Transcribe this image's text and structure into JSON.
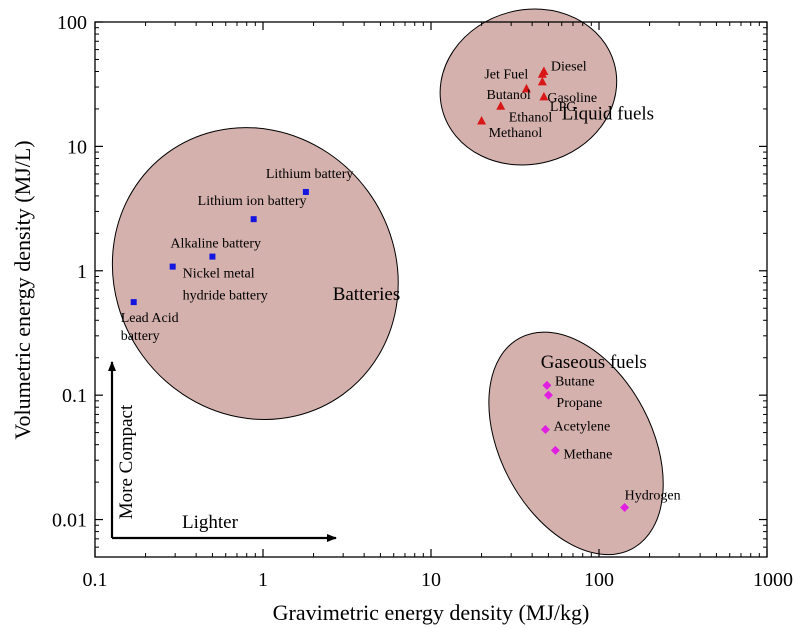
{
  "chart_data": {
    "type": "scatter",
    "title": "",
    "xlabel": "Gravimetric energy density (MJ/kg)",
    "ylabel": "Volumetric energy density (MJ/L)",
    "xscale": "log",
    "yscale": "log",
    "xlim": [
      0.1,
      1000
    ],
    "ylim": [
      0.005,
      100
    ],
    "grid": false,
    "xticks": [
      "0.1",
      "1",
      "10",
      "100",
      "1000"
    ],
    "yticks": [
      "0.01",
      "0.1",
      "1",
      "10",
      "100"
    ],
    "series": [
      {
        "group": "Batteries",
        "marker": "square",
        "color": "#1515e0",
        "ellipse": {
          "cx": 0.9,
          "cy": 0.95,
          "rx_decades": 0.83,
          "ry_decades": 1.2,
          "angle_deg": -36
        },
        "points": [
          {
            "label": "Lithium battery",
            "x": 1.8,
            "y": 4.3
          },
          {
            "label": "Lithium ion battery",
            "x": 0.88,
            "y": 2.6
          },
          {
            "label": "Alkaline battery",
            "x": 0.5,
            "y": 1.3
          },
          {
            "label": "Nickel metal hydride battery",
            "x": 0.29,
            "y": 1.08
          },
          {
            "label": "Lead Acid battery",
            "x": 0.17,
            "y": 0.56
          }
        ]
      },
      {
        "group": "Liquid fuels",
        "marker": "triangle",
        "color": "#d81818",
        "ellipse": {
          "cx": 38,
          "cy": 30,
          "rx_decades": 0.53,
          "ry_decades": 0.62,
          "angle_deg": -15
        },
        "points": [
          {
            "label": "Jet Fuel",
            "x": 46,
            "y": 38
          },
          {
            "label": "Diesel",
            "x": 47,
            "y": 40
          },
          {
            "label": "Gasoline",
            "x": 46,
            "y": 33
          },
          {
            "label": "LPG",
            "x": 47,
            "y": 25
          },
          {
            "label": "Butanol",
            "x": 37,
            "y": 29
          },
          {
            "label": "Ethanol",
            "x": 26,
            "y": 21
          },
          {
            "label": "Methanol",
            "x": 20,
            "y": 16
          }
        ]
      },
      {
        "group": "Gaseous fuels",
        "marker": "diamond",
        "color": "#e020e0",
        "ellipse": {
          "cx": 73,
          "cy": 0.041,
          "rx_decades": 0.45,
          "ry_decades": 0.96,
          "angle_deg": -28
        },
        "points": [
          {
            "label": "Butane",
            "x": 49,
            "y": 0.12
          },
          {
            "label": "Propane",
            "x": 50,
            "y": 0.1
          },
          {
            "label": "Acetylene",
            "x": 48,
            "y": 0.053
          },
          {
            "label": "Methane",
            "x": 55,
            "y": 0.036
          },
          {
            "label": "Hydrogen",
            "x": 142,
            "y": 0.0125
          }
        ]
      }
    ],
    "annotations": [
      {
        "text": "Lighter",
        "direction": "right"
      },
      {
        "text": "More Compact",
        "direction": "up"
      }
    ]
  }
}
